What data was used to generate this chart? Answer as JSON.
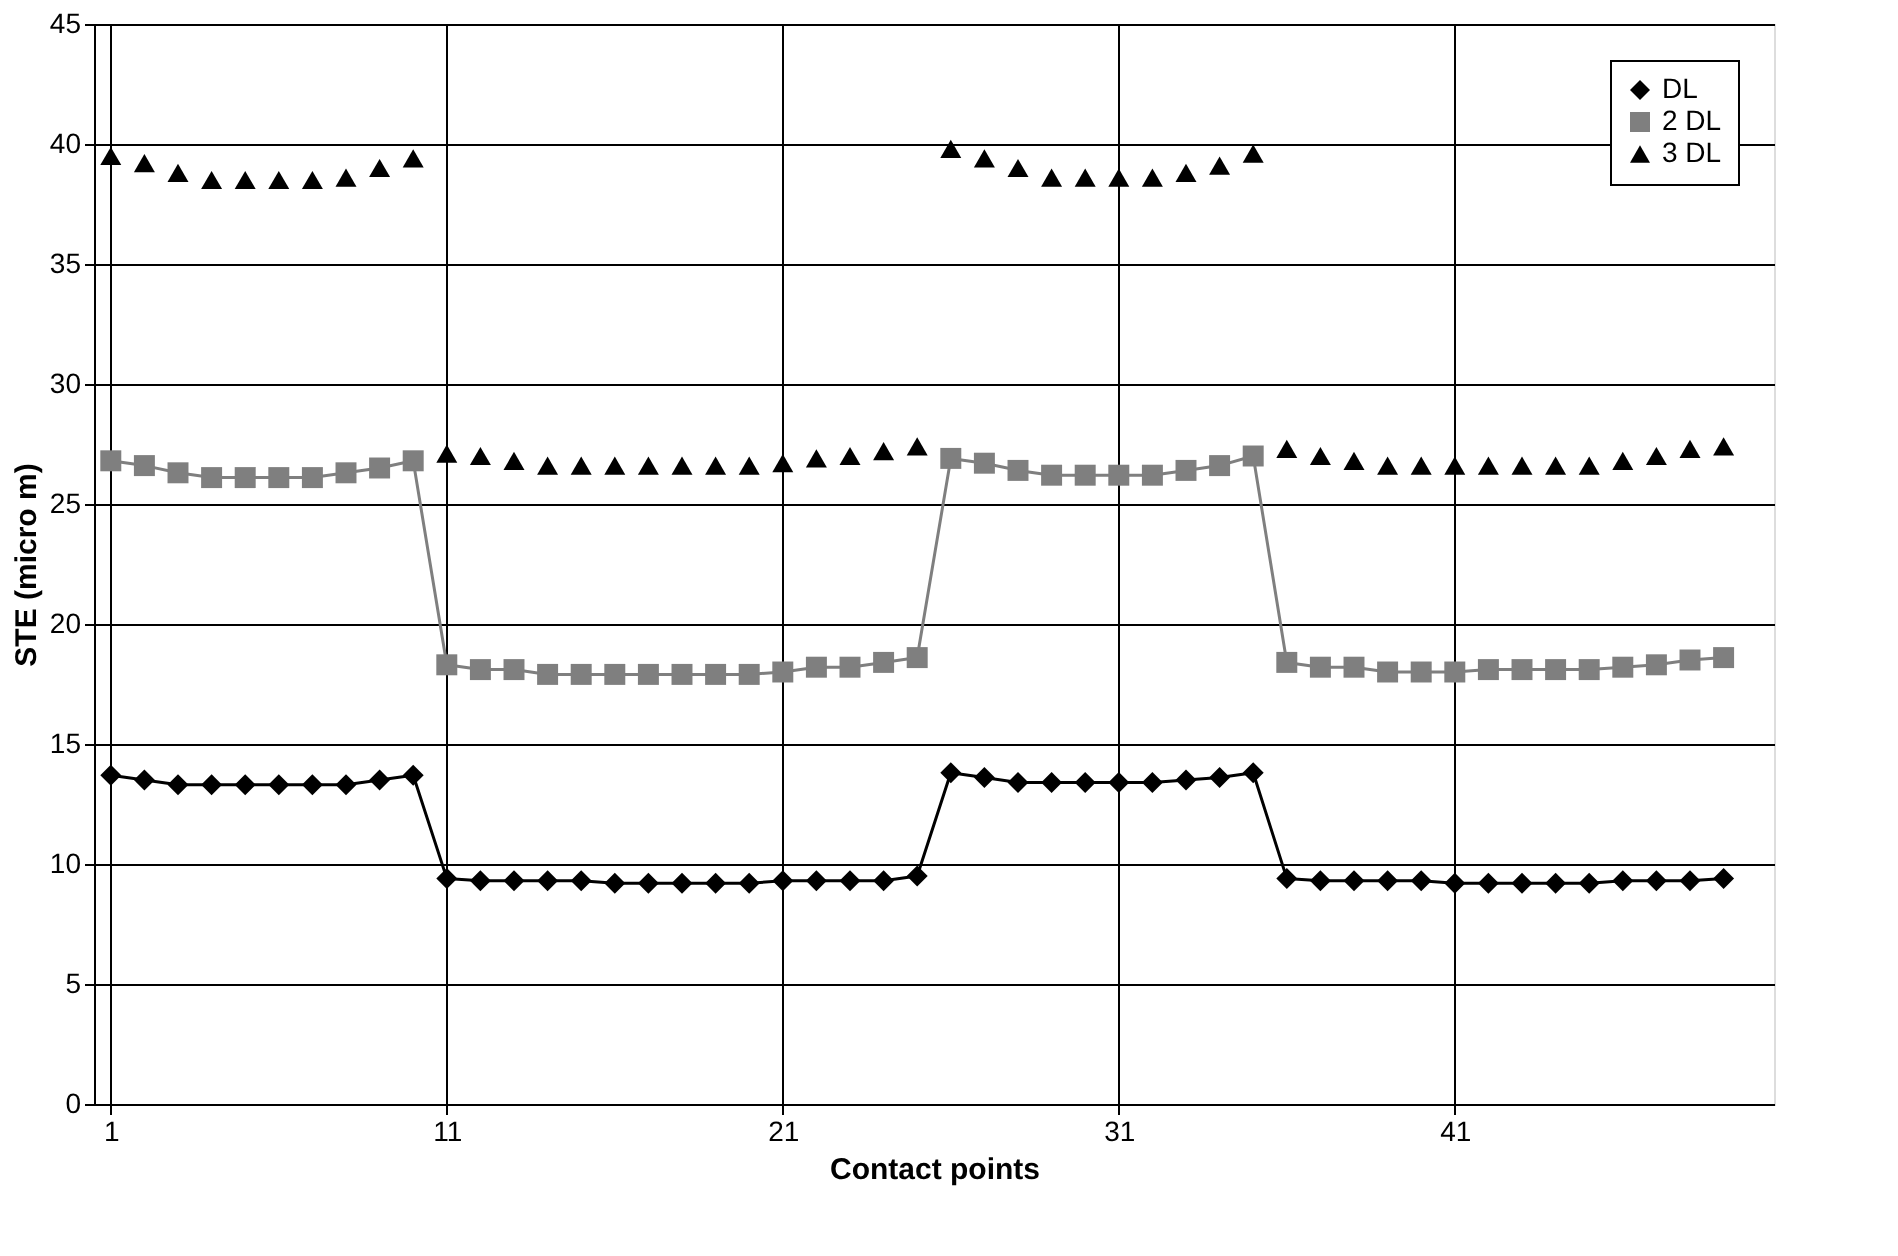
{
  "chart_data": {
    "type": "line",
    "xlabel": "Contact points",
    "ylabel": "STE (micro m)",
    "x": [
      1,
      2,
      3,
      4,
      5,
      6,
      7,
      8,
      9,
      10,
      11,
      12,
      13,
      14,
      15,
      16,
      17,
      18,
      19,
      20,
      21,
      22,
      23,
      24,
      25,
      26,
      27,
      28,
      29,
      30,
      31,
      32,
      33,
      34,
      35,
      36,
      37,
      38,
      39,
      40,
      41,
      42,
      43,
      44,
      45,
      46,
      47,
      48,
      49
    ],
    "xlim": [
      0.5,
      50.5
    ],
    "xticks": [
      1,
      11,
      21,
      31,
      41
    ],
    "ylim": [
      0,
      45
    ],
    "yticks": [
      0,
      5,
      10,
      15,
      20,
      25,
      30,
      35,
      40,
      45
    ],
    "grid": true,
    "legend": "top right",
    "series": [
      {
        "name": "DL",
        "color": "#000000",
        "marker": "diamond",
        "line_style": "solid",
        "values": [
          13.7,
          13.5,
          13.3,
          13.3,
          13.3,
          13.3,
          13.3,
          13.3,
          13.5,
          13.7,
          9.4,
          9.3,
          9.3,
          9.3,
          9.3,
          9.2,
          9.2,
          9.2,
          9.2,
          9.2,
          9.3,
          9.3,
          9.3,
          9.3,
          9.5,
          13.8,
          13.6,
          13.4,
          13.4,
          13.4,
          13.4,
          13.4,
          13.5,
          13.6,
          13.8,
          9.4,
          9.3,
          9.3,
          9.3,
          9.3,
          9.2,
          9.2,
          9.2,
          9.2,
          9.2,
          9.3,
          9.3,
          9.3,
          9.4
        ]
      },
      {
        "name": "2 DL",
        "color": "#7f7f7f",
        "marker": "square",
        "line_style": "solid",
        "values": [
          26.8,
          26.6,
          26.3,
          26.1,
          26.1,
          26.1,
          26.1,
          26.3,
          26.5,
          26.8,
          18.3,
          18.1,
          18.1,
          17.9,
          17.9,
          17.9,
          17.9,
          17.9,
          17.9,
          17.9,
          18.0,
          18.2,
          18.2,
          18.4,
          18.6,
          26.9,
          26.7,
          26.4,
          26.2,
          26.2,
          26.2,
          26.2,
          26.4,
          26.6,
          27.0,
          18.4,
          18.2,
          18.2,
          18.0,
          18.0,
          18.0,
          18.1,
          18.1,
          18.1,
          18.1,
          18.2,
          18.3,
          18.5,
          18.6
        ]
      },
      {
        "name": "3 DL",
        "type": "scatter",
        "color": "#000000",
        "marker": "triangle",
        "values": [
          39.5,
          39.2,
          38.8,
          38.5,
          38.5,
          38.5,
          38.5,
          38.6,
          39.0,
          39.4,
          27.1,
          27.0,
          26.8,
          26.6,
          26.6,
          26.6,
          26.6,
          26.6,
          26.6,
          26.6,
          26.7,
          26.9,
          27.0,
          27.2,
          27.4,
          39.8,
          39.4,
          39.0,
          38.6,
          38.6,
          38.6,
          38.6,
          38.8,
          39.1,
          39.6,
          27.3,
          27.0,
          26.8,
          26.6,
          26.6,
          26.6,
          26.6,
          26.6,
          26.6,
          26.6,
          26.8,
          27.0,
          27.3,
          27.4
        ]
      }
    ]
  }
}
